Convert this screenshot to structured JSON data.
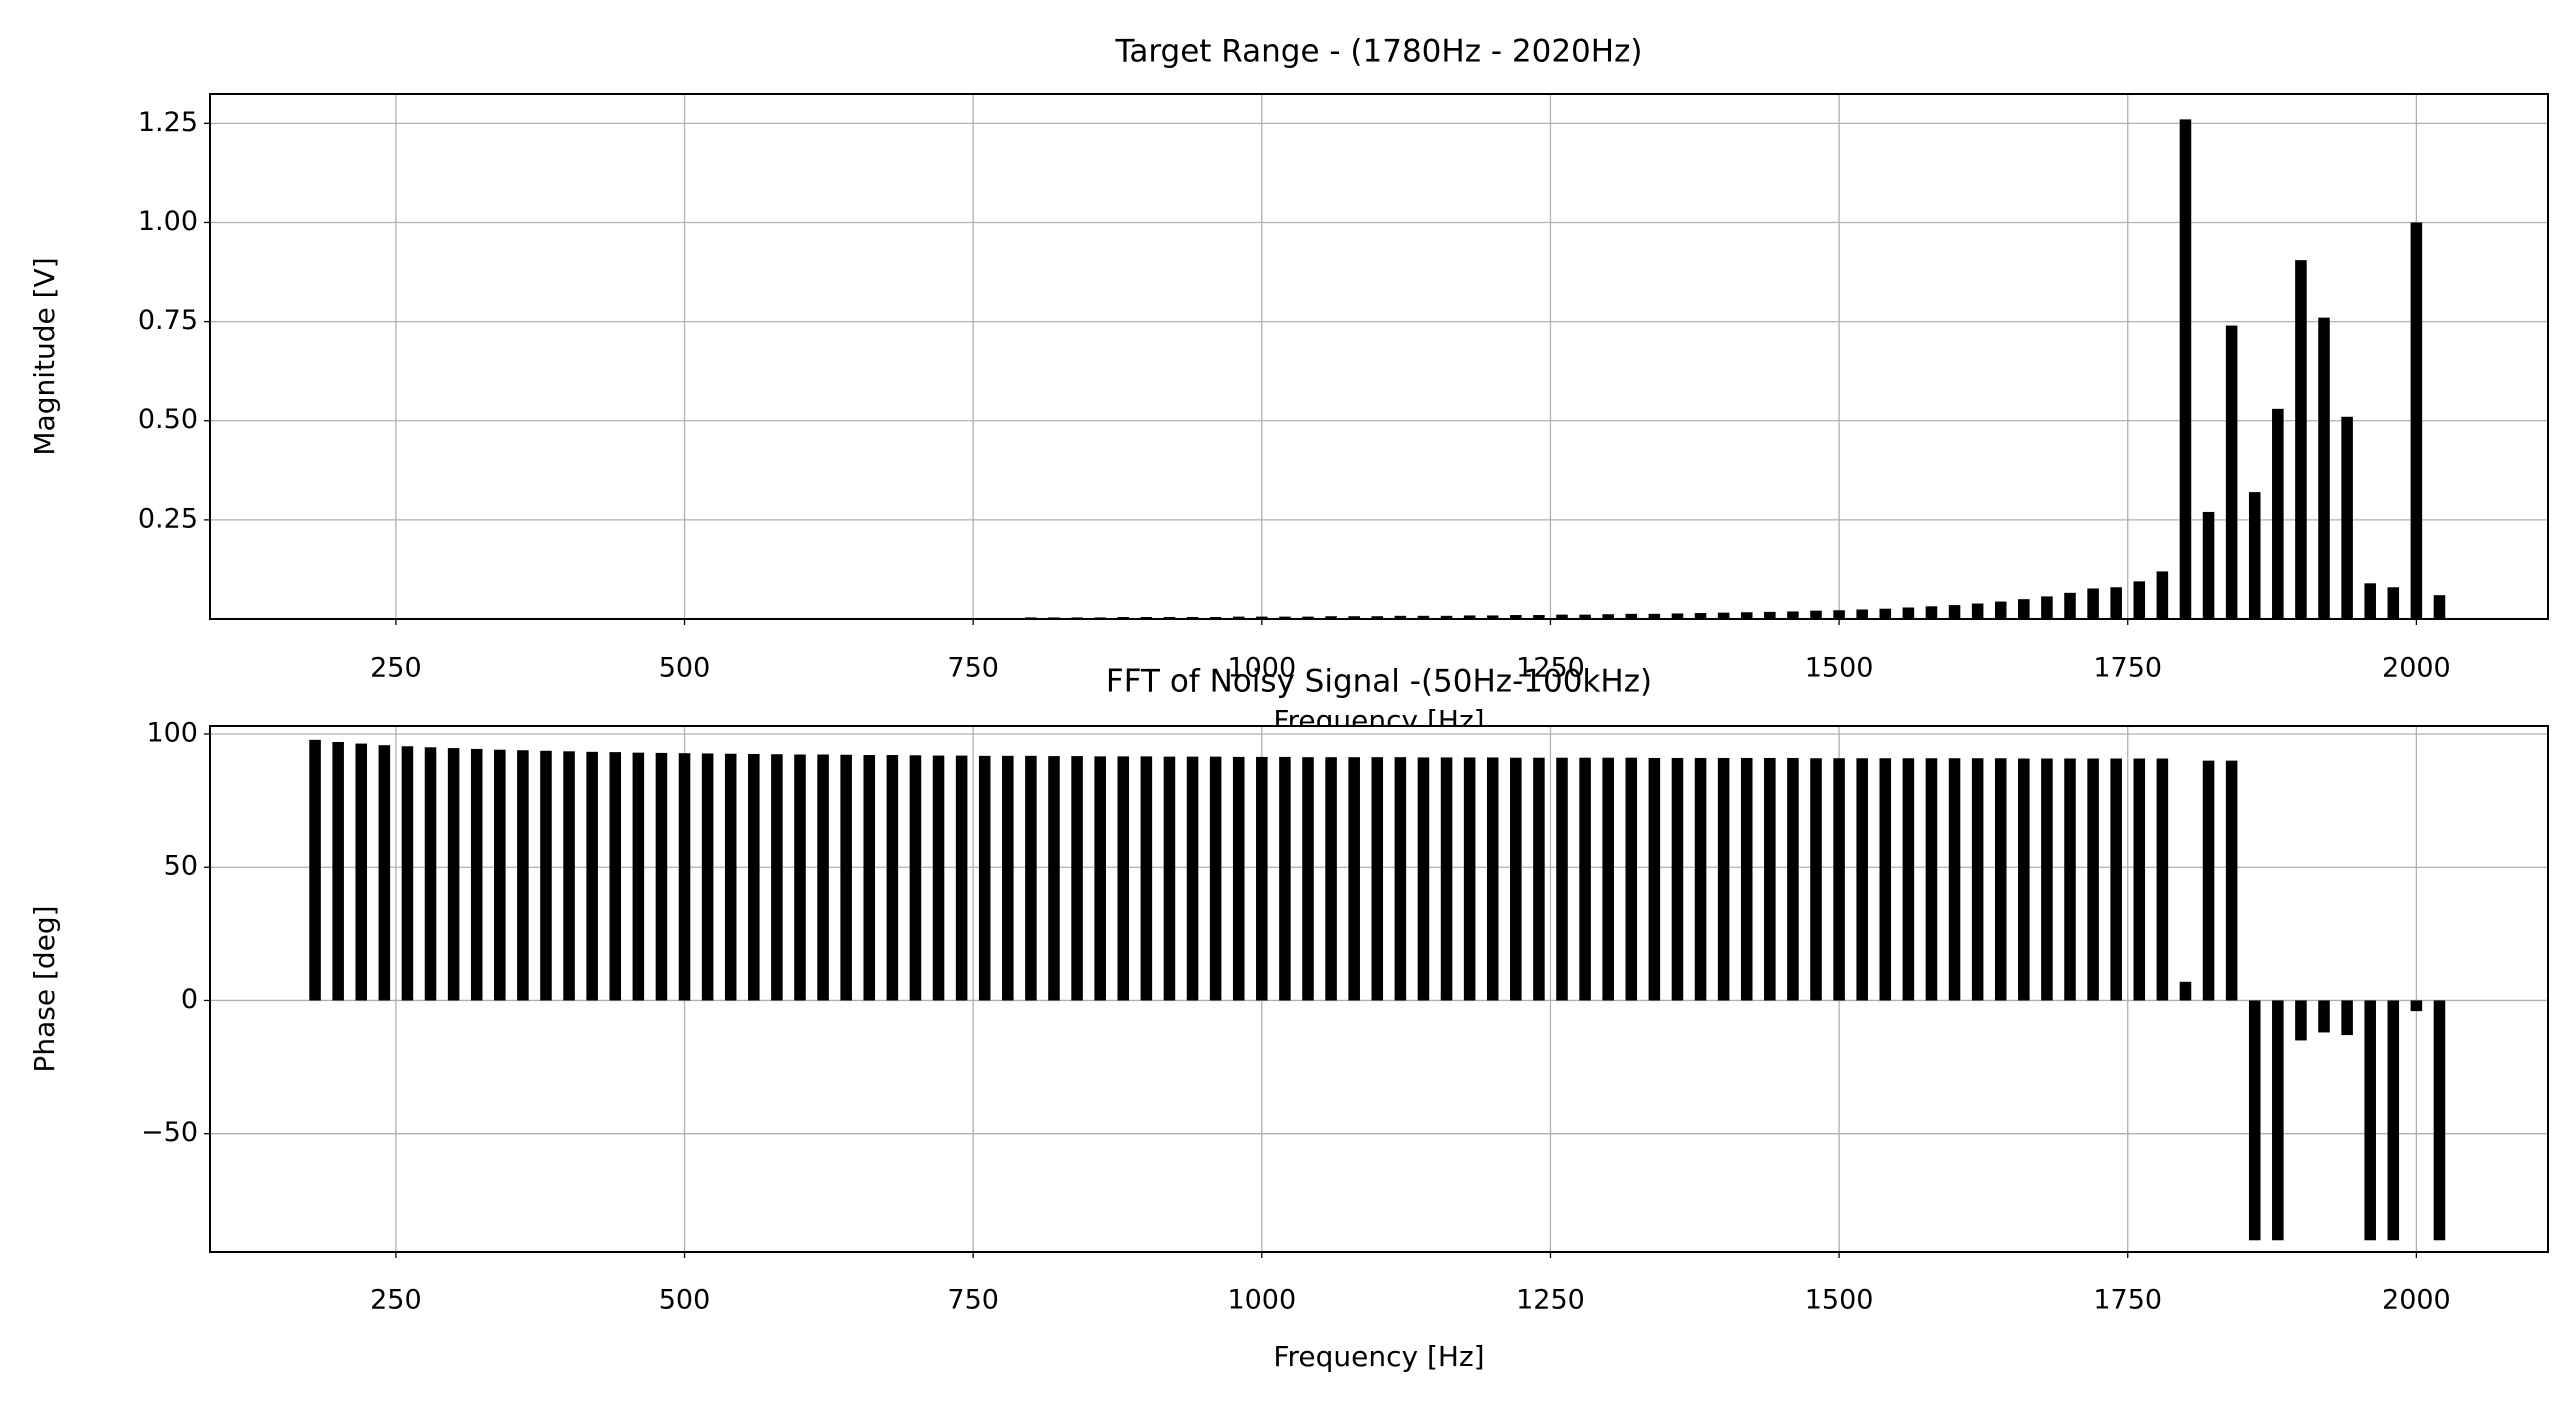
{
  "chart_data": [
    {
      "type": "bar",
      "title": "Target Range - (1780Hz - 2020Hz)",
      "x_label": "Frequency [Hz]",
      "y_label": "Magnitude [V]",
      "color": "#000000",
      "bar_width": 10,
      "grid": true,
      "x": [
        800,
        820,
        840,
        860,
        880,
        900,
        920,
        940,
        960,
        980,
        1000,
        1020,
        1040,
        1060,
        1080,
        1100,
        1120,
        1140,
        1160,
        1180,
        1200,
        1220,
        1240,
        1260,
        1280,
        1300,
        1320,
        1340,
        1360,
        1380,
        1400,
        1420,
        1440,
        1460,
        1480,
        1500,
        1520,
        1540,
        1560,
        1580,
        1600,
        1620,
        1640,
        1660,
        1680,
        1700,
        1720,
        1740,
        1760,
        1780,
        1800,
        1820,
        1840,
        1860,
        1880,
        1900,
        1920,
        1940,
        1960,
        1980,
        2000,
        2020
      ],
      "values": [
        0.004,
        0.004,
        0.004,
        0.004,
        0.005,
        0.005,
        0.005,
        0.005,
        0.005,
        0.006,
        0.006,
        0.006,
        0.006,
        0.007,
        0.007,
        0.007,
        0.008,
        0.008,
        0.008,
        0.009,
        0.009,
        0.01,
        0.01,
        0.011,
        0.011,
        0.012,
        0.013,
        0.013,
        0.014,
        0.015,
        0.016,
        0.017,
        0.018,
        0.019,
        0.021,
        0.022,
        0.024,
        0.026,
        0.029,
        0.032,
        0.035,
        0.039,
        0.044,
        0.05,
        0.057,
        0.066,
        0.077,
        0.08,
        0.095,
        0.12,
        1.26,
        0.27,
        0.74,
        0.32,
        0.53,
        0.905,
        0.76,
        0.51,
        0.09,
        0.08,
        1.0,
        0.06
      ],
      "xlim": [
        89,
        2114
      ],
      "xticks": [
        250,
        500,
        750,
        1000,
        1250,
        1500,
        1750,
        2000
      ],
      "ylim": [
        0,
        1.324
      ],
      "yticks": [
        0.25,
        {
          "value": 0.5,
          "label": "0.50"
        },
        0.75,
        {
          "value": 1,
          "label": "1.00"
        },
        1.25
      ]
    },
    {
      "type": "bar",
      "title": "FFT of Noisy Signal -(50Hz-100kHz)",
      "x_label": "Frequency [Hz]",
      "y_label": "Phase [deg]",
      "color": "#000000",
      "bar_width": 10,
      "grid": true,
      "x": [
        180,
        200,
        220,
        240,
        260,
        280,
        300,
        320,
        340,
        360,
        380,
        400,
        420,
        440,
        460,
        480,
        500,
        520,
        540,
        560,
        580,
        600,
        620,
        640,
        660,
        680,
        700,
        720,
        740,
        760,
        780,
        800,
        820,
        840,
        860,
        880,
        900,
        920,
        940,
        960,
        980,
        1000,
        1020,
        1040,
        1060,
        1080,
        1100,
        1120,
        1140,
        1160,
        1180,
        1200,
        1220,
        1240,
        1260,
        1280,
        1300,
        1320,
        1340,
        1360,
        1380,
        1400,
        1420,
        1440,
        1460,
        1480,
        1500,
        1520,
        1540,
        1560,
        1580,
        1600,
        1620,
        1640,
        1660,
        1680,
        1700,
        1720,
        1740,
        1760,
        1780,
        1800,
        1820,
        1840,
        1860,
        1880,
        1900,
        1920,
        1940,
        1960,
        1980,
        2000,
        2020
      ],
      "values": [
        97.8,
        97.0,
        96.4,
        95.8,
        95.4,
        95.0,
        94.7,
        94.4,
        94.1,
        93.9,
        93.7,
        93.5,
        93.3,
        93.2,
        93.0,
        92.9,
        92.8,
        92.7,
        92.6,
        92.5,
        92.4,
        92.3,
        92.3,
        92.2,
        92.1,
        92.1,
        92.0,
        91.9,
        91.9,
        91.8,
        91.8,
        91.8,
        91.7,
        91.7,
        91.6,
        91.6,
        91.6,
        91.5,
        91.5,
        91.5,
        91.4,
        91.4,
        91.4,
        91.3,
        91.3,
        91.3,
        91.3,
        91.3,
        91.2,
        91.2,
        91.2,
        91.2,
        91.1,
        91.1,
        91.1,
        91.1,
        91.1,
        91.1,
        91.0,
        91.0,
        91.0,
        91.0,
        91.0,
        91.0,
        91.0,
        90.9,
        90.9,
        90.9,
        90.9,
        90.9,
        90.9,
        90.9,
        90.9,
        90.9,
        90.8,
        90.8,
        90.8,
        90.8,
        90.8,
        90.8,
        90.8,
        7,
        90,
        90,
        -90,
        -90,
        -15,
        -12,
        -13,
        -90,
        -90,
        -4,
        -90
      ],
      "xlim": [
        89,
        2114
      ],
      "xticks": [
        250,
        500,
        750,
        1000,
        1250,
        1500,
        1750,
        2000
      ],
      "ylim": [
        -94.4,
        103
      ],
      "yticks": [
        {
          "value": -50,
          "label": "−50"
        },
        0,
        50,
        100
      ]
    }
  ]
}
